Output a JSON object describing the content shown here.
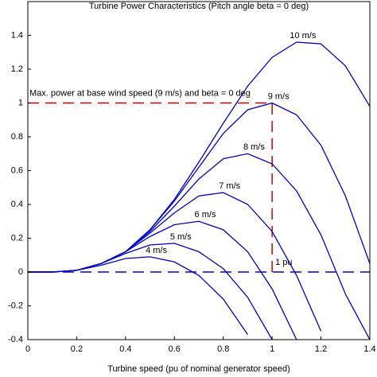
{
  "chart_data": {
    "type": "line",
    "title": "Turbine Power Characteristics (Pitch angle beta = 0 deg)",
    "x_label": "Turbine speed (pu of nominal generator speed)",
    "x": [
      0,
      0.1,
      0.2,
      0.3,
      0.4,
      0.5,
      0.6,
      0.7,
      0.8,
      0.9,
      1.0,
      1.1,
      1.2,
      1.3,
      1.4
    ],
    "series": [
      {
        "name": "10 m/s",
        "color": "#0000cc",
        "values": [
          0,
          0,
          0.01,
          0.05,
          0.12,
          0.25,
          0.43,
          0.65,
          0.88,
          1.1,
          1.27,
          1.36,
          1.35,
          1.22,
          0.98
        ]
      },
      {
        "name": "9 m/s",
        "color": "#0000cc",
        "values": [
          0,
          0,
          0.01,
          0.05,
          0.12,
          0.25,
          0.42,
          0.62,
          0.82,
          0.96,
          1.0,
          0.93,
          0.75,
          0.45,
          0.05
        ]
      },
      {
        "name": "8 m/s",
        "color": "#0000cc",
        "values": [
          0,
          0,
          0.01,
          0.05,
          0.12,
          0.24,
          0.39,
          0.55,
          0.67,
          0.7,
          0.64,
          0.48,
          0.22,
          -0.13,
          -0.4
        ]
      },
      {
        "name": "7 m/s",
        "color": "#0000cc",
        "values": [
          0,
          0,
          0.01,
          0.05,
          0.12,
          0.23,
          0.35,
          0.45,
          0.47,
          0.4,
          0.24,
          -0.02,
          -0.35,
          null,
          null
        ]
      },
      {
        "name": "6 m/s",
        "color": "#0000cc",
        "values": [
          0,
          0,
          0.01,
          0.05,
          0.12,
          0.21,
          0.28,
          0.3,
          0.25,
          0.12,
          -0.1,
          -0.4,
          null,
          null,
          null
        ]
      },
      {
        "name": "5 m/s",
        "color": "#0000cc",
        "values": [
          0,
          0,
          0.01,
          0.05,
          0.11,
          0.16,
          0.17,
          0.12,
          0.02,
          -0.15,
          -0.4,
          null,
          null,
          null,
          null
        ]
      },
      {
        "name": "4 m/s",
        "color": "#0000cc",
        "values": [
          0,
          0,
          0.01,
          0.04,
          0.08,
          0.09,
          0.06,
          -0.02,
          -0.16,
          -0.37,
          null,
          null,
          null,
          null,
          null
        ]
      }
    ],
    "annotations": [
      "Max. power at base wind speed (9 m/s) and beta = 0 deg",
      "1 pu"
    ],
    "reference_color": "#cc0000",
    "xlim": [
      0,
      1.4
    ],
    "xticks": [
      0,
      0.2,
      0.4,
      0.6,
      0.8,
      1,
      1.2,
      1.4
    ],
    "ylim": [
      -0.4,
      1.6
    ],
    "yticks": [
      -0.4,
      -0.2,
      0,
      0.2,
      0.4,
      0.6,
      0.8,
      1,
      1.2,
      1.4
    ]
  }
}
